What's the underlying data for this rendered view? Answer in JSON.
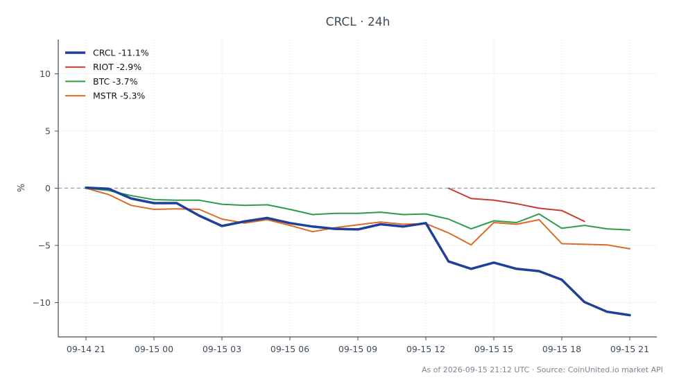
{
  "chart_data": {
    "type": "line",
    "title": "CRCL · 24h",
    "ylabel": "%",
    "xlabel": "",
    "ylim": [
      -13,
      13
    ],
    "yticks": [
      10,
      5,
      0,
      -5,
      -10
    ],
    "ytick_labels": [
      "10",
      "5",
      "0",
      "−5",
      "−10"
    ],
    "x_tick_positions": [
      0,
      3,
      6,
      9,
      12,
      15,
      18,
      21,
      24
    ],
    "x_tick_labels": [
      "09-14 21",
      "09-15 00",
      "09-15 03",
      "09-15 06",
      "09-15 09",
      "09-15 12",
      "09-15 15",
      "09-15 18",
      "09-15 21"
    ],
    "x": [
      "09-14 21:00",
      "09-14 22:00",
      "09-14 23:00",
      "09-15 00:00",
      "09-15 01:00",
      "09-15 02:00",
      "09-15 03:00",
      "09-15 04:00",
      "09-15 05:00",
      "09-15 06:00",
      "09-15 07:00",
      "09-15 08:00",
      "09-15 09:00",
      "09-15 10:00",
      "09-15 11:00",
      "09-15 12:00",
      "09-15 13:00",
      "09-15 14:00",
      "09-15 15:00",
      "09-15 16:00",
      "09-15 17:00",
      "09-15 18:00",
      "09-15 19:00",
      "09-15 20:00",
      "09-15 21:00"
    ],
    "grid": true,
    "zero_line": true,
    "legend_position": "top-left",
    "series": [
      {
        "name": "CRCL -11.1%",
        "color": "#1f3f99",
        "width": 3.5,
        "values": [
          0.05,
          -0.05,
          -0.9,
          -1.3,
          -1.3,
          -2.4,
          -3.3,
          -2.9,
          -2.6,
          -3.05,
          -3.35,
          -3.55,
          -3.6,
          -3.15,
          -3.35,
          -3.05,
          -6.4,
          -7.05,
          -6.5,
          -7.05,
          -7.25,
          -8.0,
          -9.95,
          -10.8,
          -11.1
        ]
      },
      {
        "name": "RIOT -2.9%",
        "color": "#c93a32",
        "width": 2,
        "values": [
          null,
          null,
          null,
          null,
          null,
          null,
          null,
          null,
          null,
          null,
          null,
          null,
          null,
          null,
          null,
          null,
          0.0,
          -0.9,
          -1.05,
          -1.35,
          -1.75,
          -1.95,
          -2.9,
          null,
          null
        ]
      },
      {
        "name": "BTC -3.7%",
        "color": "#2a9d48",
        "width": 2,
        "values": [
          0.0,
          -0.2,
          -0.65,
          -1.0,
          -1.05,
          -1.05,
          -1.4,
          -1.5,
          -1.45,
          -1.85,
          -2.3,
          -2.2,
          -2.2,
          -2.1,
          -2.3,
          -2.25,
          -2.7,
          -3.55,
          -2.85,
          -3.0,
          -2.25,
          -3.5,
          -3.25,
          -3.55,
          -3.65
        ]
      },
      {
        "name": "MSTR -5.3%",
        "color": "#dd6a26",
        "width": 2,
        "values": [
          0.0,
          -0.55,
          -1.5,
          -1.85,
          -1.8,
          -1.85,
          -2.7,
          -3.05,
          -2.75,
          -3.25,
          -3.8,
          -3.45,
          -3.2,
          -2.95,
          -3.15,
          -3.1,
          -3.9,
          -4.95,
          -3.0,
          -3.15,
          -2.75,
          -4.85,
          -4.9,
          -4.95,
          -5.3
        ]
      }
    ]
  },
  "footer": "As of 2026-09-15 21:12 UTC · Source: CoinUnited.io market API"
}
